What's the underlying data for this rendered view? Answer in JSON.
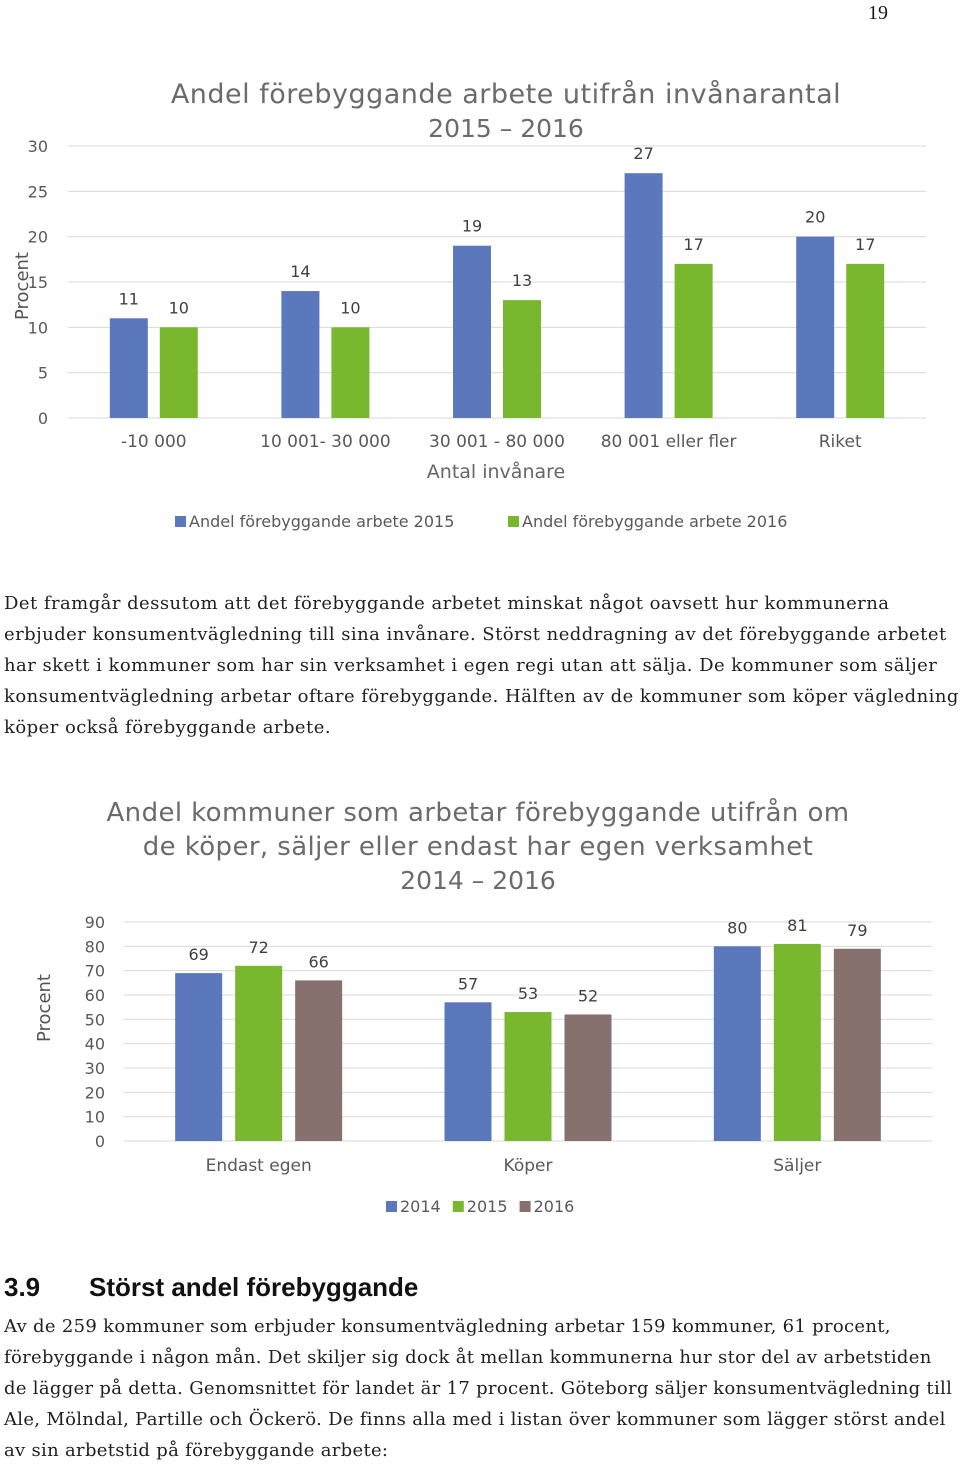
{
  "page_number": "19",
  "paragraph1": "Det framgår dessutom att det förebyggande arbetet minskat något oavsett hur kommunerna erbjuder konsumentvägledning till sina invånare. Störst neddragning av det förebyggande arbetet har skett i kommuner som har sin verksamhet i egen regi utan att sälja. De kommuner som säljer konsumentvägledning arbetar oftare förebyggande. Hälften av de kommuner som köper vägledning köper också förebyggande arbete.",
  "section": {
    "number": "3.9",
    "title": "Störst andel förebyggande"
  },
  "paragraph2": "Av de 259 kommuner som erbjuder konsumentvägledning arbetar 159 kommuner, 61 procent, förebyggande i någon mån. Det skiljer sig dock åt mellan kommunerna hur stor del av arbetstiden de lägger på detta. Genomsnittet för landet är 17 procent. Göteborg säljer konsumentvägledning till Ale, Mölndal, Partille och Öckerö. De finns alla med i listan över kommuner som lägger störst andel av sin arbetstid på förebyggande arbete:",
  "chart_data": [
    {
      "type": "bar",
      "title": "Andel förebyggande arbete utifrån invånarantal",
      "subtitle": "2015 – 2016",
      "xlabel": "Antal invånare",
      "ylabel": "Procent",
      "ylim": [
        0,
        30
      ],
      "yticks": [
        "0",
        "5",
        "10",
        "15",
        "20",
        "25",
        "30"
      ],
      "categories": [
        "-10 000",
        "10 001- 30 000",
        "30 001 - 80 000",
        "80 001 eller fler",
        "Riket"
      ],
      "series": [
        {
          "name": "Andel förebyggande arbete 2015",
          "color": "#5b78bd",
          "values": [
            11,
            14,
            19,
            27,
            20
          ]
        },
        {
          "name": "Andel förebyggande arbete 2016",
          "color": "#79b72e",
          "values": [
            10,
            10,
            13,
            17,
            17
          ]
        }
      ],
      "grid": true,
      "legend": "bottom"
    },
    {
      "type": "bar",
      "title": "Andel kommuner som arbetar förebyggande utifrån om de köper, säljer eller endast har egen verksamhet",
      "title_lines": [
        "Andel kommuner som arbetar förebyggande utifrån om",
        "de köper, säljer eller endast har egen verksamhet"
      ],
      "subtitle": "2014 – 2016",
      "xlabel": "",
      "ylabel": "Procent",
      "ylim": [
        0,
        90
      ],
      "yticks": [
        "0",
        "10",
        "20",
        "30",
        "40",
        "50",
        "60",
        "70",
        "80",
        "90"
      ],
      "categories": [
        "Endast egen",
        "Köper",
        "Säljer"
      ],
      "series": [
        {
          "name": "2014",
          "color": "#5b78bd",
          "values": [
            69,
            57,
            80
          ]
        },
        {
          "name": "2015",
          "color": "#79b72e",
          "values": [
            72,
            53,
            81
          ]
        },
        {
          "name": "2016",
          "color": "#86716e",
          "values": [
            66,
            52,
            79
          ]
        }
      ],
      "grid": true,
      "legend": "bottom"
    }
  ]
}
